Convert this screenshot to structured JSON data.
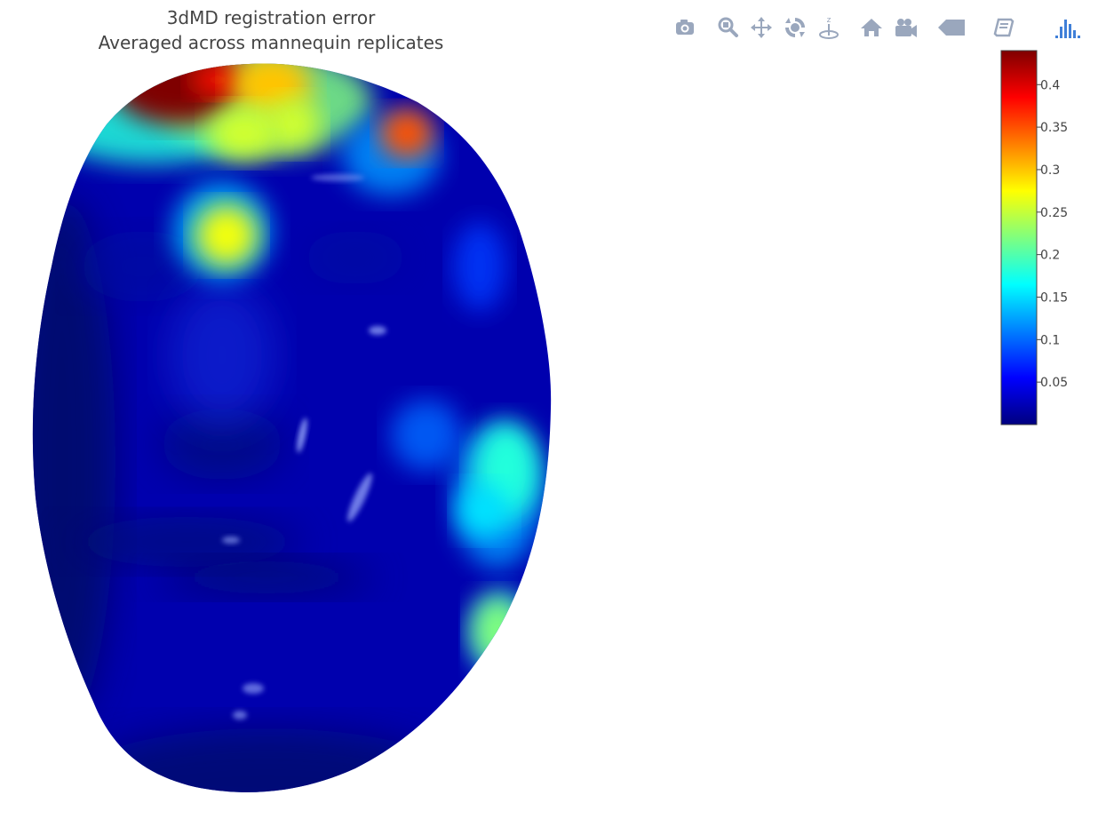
{
  "title_lines": [
    "3dMD registration error",
    "Averaged across mannequin replicates"
  ],
  "modebar": {
    "buttons": [
      {
        "name": "camera-icon",
        "title": "Download plot as a png"
      },
      {
        "name": "zoom-icon",
        "title": "Zoom"
      },
      {
        "name": "pan-icon",
        "title": "Pan"
      },
      {
        "name": "orbit-rotation-icon",
        "title": "Orbital rotation"
      },
      {
        "name": "turntable-rotation-icon",
        "title": "Turntable rotation"
      },
      {
        "name": "home-icon",
        "title": "Reset camera to default"
      },
      {
        "name": "movie-camera-icon",
        "title": "Reset camera to last save"
      },
      {
        "name": "hover-toggle-icon",
        "title": "Toggle show closest data on hover"
      },
      {
        "name": "book-icon",
        "title": "Edit in Chart Studio"
      },
      {
        "name": "plotly-logo-icon",
        "title": "Produced with Plotly"
      }
    ],
    "icon_color": "#9aa7bd",
    "logo_color": "#3f7fd8"
  },
  "chart_data": {
    "type": "mesh3d",
    "title": "3dMD registration error\nAveraged across mannequin replicates",
    "colorscale": "Jet",
    "colorscale_stops": [
      "#00007f",
      "#0000ff",
      "#007fff",
      "#00ffff",
      "#7fff7f",
      "#ffff00",
      "#ff7f00",
      "#ff0000",
      "#7f0000"
    ],
    "colorbar": {
      "cmin": 0.0,
      "cmax": 0.44,
      "tickvals": [
        0.05,
        0.1,
        0.15,
        0.2,
        0.25,
        0.3,
        0.35,
        0.4
      ],
      "ticktext": [
        "0.05",
        "0.1",
        "0.15",
        "0.2",
        "0.25",
        "0.3",
        "0.35",
        "0.4"
      ]
    },
    "surface": "face scan (mannequin)",
    "baseline_value": 0.02,
    "hotspots": [
      {
        "region": "upper forehead left",
        "value": 0.44
      },
      {
        "region": "upper forehead center",
        "value": 0.3
      },
      {
        "region": "forehead right",
        "value": 0.35
      },
      {
        "region": "between brows",
        "value": 0.27
      },
      {
        "region": "right cheek edge",
        "value": 0.18
      },
      {
        "region": "right jaw edge",
        "value": 0.22
      }
    ]
  }
}
